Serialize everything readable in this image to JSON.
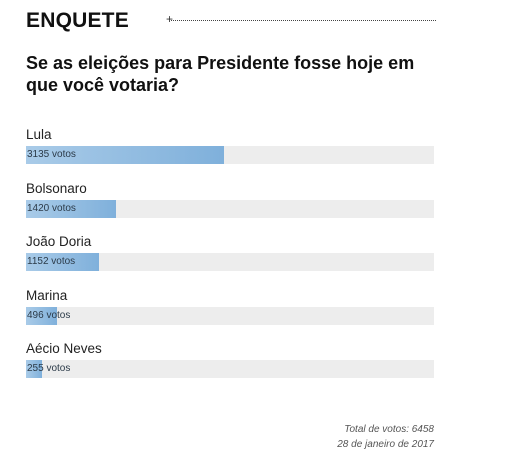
{
  "poll": {
    "title": "ENQUETE",
    "question": "Se as eleições para Presidente fosse hoje em que você votaria?",
    "options": [
      {
        "name": "Lula",
        "votes_label": "3135 votos",
        "fraction": 0.4854
      },
      {
        "name": "Bolsonaro",
        "votes_label": "1420 votos",
        "fraction": 0.2199
      },
      {
        "name": "João Doria",
        "votes_label": "1152 votos",
        "fraction": 0.1784
      },
      {
        "name": "Marina",
        "votes_label": "496 votos",
        "fraction": 0.0768
      },
      {
        "name": "Aécio Neves",
        "votes_label": "255 votos",
        "fraction": 0.0395
      }
    ],
    "total_label": "Total de votos: 6458",
    "date_label": "28 de janeiro de 2017"
  },
  "colors": {
    "bar_fill": "#7fb0db",
    "bar_track": "#ededed"
  }
}
